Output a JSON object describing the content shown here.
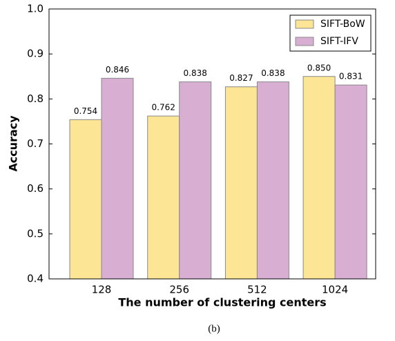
{
  "chart_data": {
    "type": "bar",
    "xlabel": "The number of clustering centers",
    "ylabel": "Accuracy",
    "caption": "(b)",
    "categories": [
      "128",
      "256",
      "512",
      "1024"
    ],
    "series": [
      {
        "name": "SIFT-BoW",
        "color": "#fce594",
        "values": [
          0.754,
          0.762,
          0.827,
          0.85
        ],
        "value_labels": [
          "0.754",
          "0.762",
          "0.827",
          "0.850"
        ]
      },
      {
        "name": "SIFT-IFV",
        "color": "#d8afd3",
        "values": [
          0.846,
          0.838,
          0.838,
          0.831
        ],
        "value_labels": [
          "0.846",
          "0.838",
          "0.838",
          "0.831"
        ]
      }
    ],
    "ylim": [
      0.4,
      1.0
    ],
    "yticks": [
      0.4,
      0.5,
      0.6,
      0.7,
      0.8,
      0.9,
      {
        "value": 1.0,
        "label": "1.0"
      }
    ],
    "legend": "upper right"
  }
}
